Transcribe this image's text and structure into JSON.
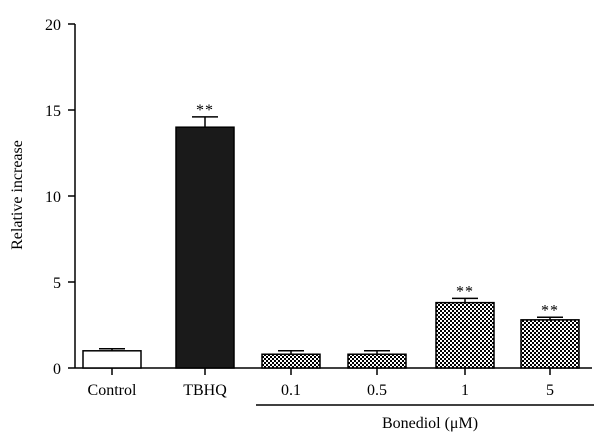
{
  "chart_data": {
    "type": "bar",
    "ylabel": "Relative increase",
    "ylim": [
      0,
      20
    ],
    "yticks": [
      "0",
      "5",
      "10",
      "15",
      "20"
    ],
    "categories": [
      "Control",
      "TBHQ",
      "0.1",
      "0.5",
      "1",
      "5"
    ],
    "values": [
      1.0,
      14.0,
      0.8,
      0.8,
      3.8,
      2.8
    ],
    "errors": [
      0.12,
      0.6,
      0.2,
      0.2,
      0.25,
      0.15
    ],
    "significance": [
      "",
      "**",
      "",
      "",
      "**",
      "**"
    ],
    "fills": [
      "white",
      "solid",
      "pattern",
      "pattern",
      "pattern",
      "pattern"
    ],
    "group": {
      "label": "Bonediol (μM)",
      "members": [
        "0.1",
        "0.5",
        "1",
        "5"
      ]
    }
  }
}
